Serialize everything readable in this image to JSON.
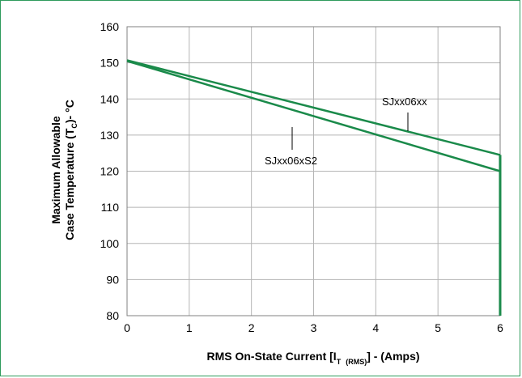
{
  "chart_data": {
    "type": "line",
    "xlim": [
      0,
      6
    ],
    "ylim": [
      80,
      160
    ],
    "x_ticks": [
      0,
      1,
      2,
      3,
      4,
      5,
      6
    ],
    "y_ticks": [
      80,
      90,
      100,
      110,
      120,
      130,
      140,
      150,
      160
    ],
    "grid": true,
    "xlabel_parts": {
      "prefix": "RMS On-State  Current [I",
      "sub1": "T",
      "sub2": "(RMS)",
      "suffix": "] - (Amps)"
    },
    "ylabel_lines": {
      "line1": "Maximum Allowable",
      "line2_prefix": "Case Temperature (T",
      "line2_sub": "C",
      "line2_suffix": ")- °C"
    },
    "series": [
      {
        "name": "SJxx06xx",
        "x": [
          0,
          6
        ],
        "y": [
          150.7,
          124.5
        ],
        "color": "#1a8a4a"
      },
      {
        "name": "SJxx06xS2",
        "x": [
          0,
          6
        ],
        "y": [
          150.5,
          120.0
        ],
        "color": "#1a8a4a"
      }
    ],
    "drop_line": {
      "x": 6,
      "y": [
        124.5,
        80
      ]
    }
  }
}
